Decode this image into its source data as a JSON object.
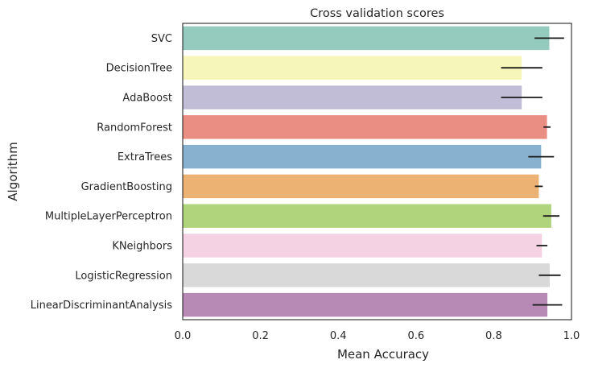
{
  "chart_data": {
    "type": "bar",
    "orientation": "horizontal",
    "title": "Cross validation scores",
    "xlabel": "Mean Accuracy",
    "ylabel": "Algorithm",
    "xlim": [
      0,
      1.0
    ],
    "xticks": [
      "0.0",
      "0.2",
      "0.4",
      "0.6",
      "0.8",
      "1.0"
    ],
    "grid": false,
    "categories": [
      "SVC",
      "DecisionTree",
      "AdaBoost",
      "RandomForest",
      "ExtraTrees",
      "GradientBoosting",
      "MultipleLayerPerceptron",
      "KNeighbors",
      "LogisticRegression",
      "LinearDiscriminantAnalysis"
    ],
    "values": [
      0.943,
      0.872,
      0.872,
      0.937,
      0.922,
      0.916,
      0.948,
      0.924,
      0.944,
      0.938
    ],
    "errors": [
      0.038,
      0.053,
      0.053,
      0.009,
      0.033,
      0.01,
      0.021,
      0.014,
      0.028,
      0.038
    ],
    "colors": [
      "#95cbbe",
      "#f6f6bb",
      "#c1bdd6",
      "#ea8d82",
      "#87b1ce",
      "#ecb273",
      "#b0d47b",
      "#f4d2e3",
      "#d9d9d9",
      "#b78ab6"
    ]
  }
}
